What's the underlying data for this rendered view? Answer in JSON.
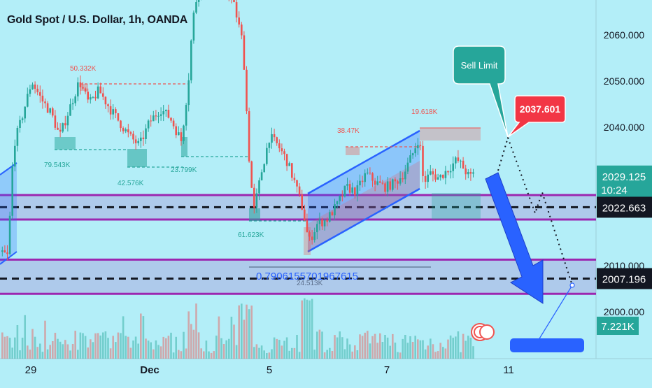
{
  "chart_data": {
    "type": "candlestick",
    "title": "Gold Spot / U.S. Dollar, 1h, OANDA",
    "x_ticks": [
      "29",
      "Dec",
      "5",
      "7",
      "11"
    ],
    "y_ticks": [
      "2060.000",
      "2050.000",
      "2040.000",
      "2010.000",
      "2000.000"
    ],
    "ylim": [
      1993.5,
      2068
    ],
    "price_badges": [
      {
        "label": "2029.125",
        "sub": "10:24",
        "value": 2029.125,
        "color": "#26a69a"
      },
      {
        "label": "2022.663",
        "value": 2022.663,
        "color": "#131722"
      },
      {
        "label": "2007.196",
        "value": 2007.196,
        "color": "#131722"
      }
    ],
    "volume_badge": {
      "label": "7.221K",
      "color": "#26a69a"
    },
    "sell_limit": {
      "callout": "Sell Limit",
      "price": "2037.601"
    },
    "fib_label": "0.7906155701967615",
    "annotations": [
      "50.332K",
      "79.543K",
      "42.576K",
      "23.799K",
      "61.623K",
      "38.47K",
      "19.618K",
      "24.513K"
    ],
    "zones": [
      {
        "name": "upper support band",
        "from": 2020.0,
        "to": 2025.3
      },
      {
        "name": "lower support band",
        "from": 2003.9,
        "to": 2011.3
      }
    ],
    "dashed_levels": [
      2022.663,
      2007.196
    ],
    "candles_approx": {
      "open_high_low_close_segments": [
        {
          "period": "Nov 28-29",
          "range": [
            2015,
            2052
          ]
        },
        {
          "period": "Nov 30 - Dec 1",
          "range": [
            2035,
            2050
          ]
        },
        {
          "period": "Dec 1-3",
          "range": [
            2038,
            2075
          ]
        },
        {
          "period": "Dec 4-5",
          "range": [
            2018,
            2040
          ]
        },
        {
          "period": "Dec 6-8",
          "range": [
            2016,
            2041
          ]
        }
      ]
    },
    "colors": {
      "up": "#26a69a",
      "down": "#ef5350",
      "band": "#9c27b0",
      "arrow": "#2962ff"
    }
  }
}
